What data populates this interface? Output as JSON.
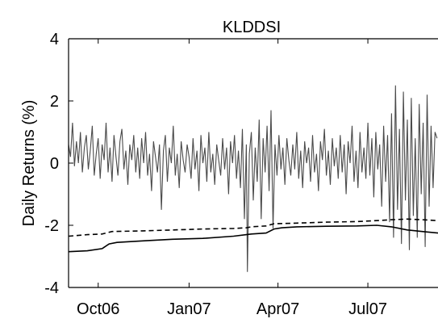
{
  "chart_data": {
    "type": "line",
    "title": "KLDDSI",
    "xlabel": "",
    "ylabel": "Daily Returns (%)",
    "ylim": [
      -4,
      4
    ],
    "yticks": [
      -4,
      -2,
      0,
      2,
      4
    ],
    "xlim": [
      "2006-09-01",
      "2007-09-10"
    ],
    "xticks": [
      {
        "label": "Oct06",
        "date": "2006-10-01"
      },
      {
        "label": "Jan07",
        "date": "2007-01-01"
      },
      {
        "label": "Apr07",
        "date": "2007-04-01"
      },
      {
        "label": "Jul07",
        "date": "2007-07-01"
      }
    ],
    "grid": false,
    "legend": "none",
    "series": [
      {
        "style": "solid",
        "color": "#4a4a4a",
        "points": [
          [
            "2006-09-01",
            0.6
          ],
          [
            "2006-09-03",
            0.2
          ],
          [
            "2006-09-05",
            1.3
          ],
          [
            "2006-09-07",
            -0.1
          ],
          [
            "2006-09-09",
            0.7
          ],
          [
            "2006-09-11",
            0.0
          ],
          [
            "2006-09-13",
            1.0
          ],
          [
            "2006-09-15",
            -0.3
          ],
          [
            "2006-09-17",
            0.5
          ],
          [
            "2006-09-19",
            0.9
          ],
          [
            "2006-09-21",
            -0.2
          ],
          [
            "2006-09-23",
            0.4
          ],
          [
            "2006-09-25",
            1.2
          ],
          [
            "2006-09-27",
            -0.4
          ],
          [
            "2006-09-29",
            0.3
          ],
          [
            "2006-10-01",
            0.8
          ],
          [
            "2006-10-03",
            -0.5
          ],
          [
            "2006-10-05",
            0.6
          ],
          [
            "2006-10-07",
            0.1
          ],
          [
            "2006-10-09",
            1.3
          ],
          [
            "2006-10-11",
            -0.3
          ],
          [
            "2006-10-13",
            0.5
          ],
          [
            "2006-10-15",
            -0.6
          ],
          [
            "2006-10-17",
            0.9
          ],
          [
            "2006-10-19",
            0.2
          ],
          [
            "2006-10-21",
            -0.4
          ],
          [
            "2006-10-23",
            0.7
          ],
          [
            "2006-10-25",
            1.1
          ],
          [
            "2006-10-27",
            -0.2
          ],
          [
            "2006-10-29",
            0.4
          ],
          [
            "2006-10-31",
            -0.7
          ],
          [
            "2006-11-02",
            0.6
          ],
          [
            "2006-11-04",
            0.1
          ],
          [
            "2006-11-06",
            0.9
          ],
          [
            "2006-11-08",
            -0.3
          ],
          [
            "2006-11-10",
            0.5
          ],
          [
            "2006-11-12",
            -0.5
          ],
          [
            "2006-11-14",
            0.8
          ],
          [
            "2006-11-16",
            0.0
          ],
          [
            "2006-11-18",
            1.0
          ],
          [
            "2006-11-20",
            -0.4
          ],
          [
            "2006-11-22",
            0.3
          ],
          [
            "2006-11-24",
            -0.9
          ],
          [
            "2006-11-26",
            0.7
          ],
          [
            "2006-11-28",
            0.2
          ],
          [
            "2006-11-30",
            -0.3
          ],
          [
            "2006-12-02",
            0.6
          ],
          [
            "2006-12-04",
            -1.5
          ],
          [
            "2006-12-06",
            0.4
          ],
          [
            "2006-12-08",
            0.9
          ],
          [
            "2006-12-10",
            -0.6
          ],
          [
            "2006-12-12",
            0.5
          ],
          [
            "2006-12-14",
            0.0
          ],
          [
            "2006-12-16",
            1.2
          ],
          [
            "2006-12-18",
            -0.4
          ],
          [
            "2006-12-20",
            0.3
          ],
          [
            "2006-12-22",
            -0.8
          ],
          [
            "2006-12-24",
            0.7
          ],
          [
            "2006-12-26",
            0.1
          ],
          [
            "2006-12-28",
            -0.3
          ],
          [
            "2006-12-30",
            0.6
          ],
          [
            "2007-01-01",
            0.2
          ],
          [
            "2007-01-03",
            -0.5
          ],
          [
            "2007-01-05",
            0.8
          ],
          [
            "2007-01-07",
            -0.2
          ],
          [
            "2007-01-09",
            0.4
          ],
          [
            "2007-01-11",
            -0.9
          ],
          [
            "2007-01-13",
            0.9
          ],
          [
            "2007-01-15",
            0.0
          ],
          [
            "2007-01-17",
            0.5
          ],
          [
            "2007-01-19",
            -0.6
          ],
          [
            "2007-01-21",
            1.0
          ],
          [
            "2007-01-23",
            -0.3
          ],
          [
            "2007-01-25",
            0.3
          ],
          [
            "2007-01-27",
            -0.7
          ],
          [
            "2007-01-29",
            0.6
          ],
          [
            "2007-01-31",
            0.1
          ],
          [
            "2007-02-02",
            -0.4
          ],
          [
            "2007-02-04",
            0.8
          ],
          [
            "2007-02-06",
            -0.2
          ],
          [
            "2007-02-08",
            0.5
          ],
          [
            "2007-02-10",
            -1.0
          ],
          [
            "2007-02-12",
            0.7
          ],
          [
            "2007-02-14",
            0.0
          ],
          [
            "2007-02-16",
            0.9
          ],
          [
            "2007-02-18",
            -0.5
          ],
          [
            "2007-02-20",
            0.4
          ],
          [
            "2007-02-22",
            -0.8
          ],
          [
            "2007-02-24",
            1.1
          ],
          [
            "2007-02-26",
            -1.8
          ],
          [
            "2007-02-28",
            0.6
          ],
          [
            "2007-03-01",
            -3.5
          ],
          [
            "2007-03-03",
            0.3
          ],
          [
            "2007-03-05",
            1.0
          ],
          [
            "2007-03-07",
            -1.2
          ],
          [
            "2007-03-09",
            0.5
          ],
          [
            "2007-03-11",
            -0.6
          ],
          [
            "2007-03-13",
            1.4
          ],
          [
            "2007-03-15",
            -1.8
          ],
          [
            "2007-03-17",
            0.8
          ],
          [
            "2007-03-19",
            -0.3
          ],
          [
            "2007-03-21",
            1.2
          ],
          [
            "2007-03-23",
            -0.9
          ],
          [
            "2007-03-25",
            1.7
          ],
          [
            "2007-03-27",
            -2.1
          ],
          [
            "2007-03-29",
            0.6
          ],
          [
            "2007-03-31",
            -0.4
          ],
          [
            "2007-04-02",
            0.9
          ],
          [
            "2007-04-04",
            -0.2
          ],
          [
            "2007-04-06",
            0.5
          ],
          [
            "2007-04-08",
            -0.7
          ],
          [
            "2007-04-10",
            0.8
          ],
          [
            "2007-04-12",
            0.1
          ],
          [
            "2007-04-14",
            -0.4
          ],
          [
            "2007-04-16",
            0.6
          ],
          [
            "2007-04-18",
            -0.2
          ],
          [
            "2007-04-20",
            1.0
          ],
          [
            "2007-04-22",
            -0.5
          ],
          [
            "2007-04-24",
            0.4
          ],
          [
            "2007-04-26",
            -0.8
          ],
          [
            "2007-04-28",
            0.7
          ],
          [
            "2007-04-30",
            0.0
          ],
          [
            "2007-05-02",
            0.5
          ],
          [
            "2007-05-04",
            -0.6
          ],
          [
            "2007-05-06",
            0.9
          ],
          [
            "2007-05-08",
            -0.3
          ],
          [
            "2007-05-10",
            0.3
          ],
          [
            "2007-05-12",
            -0.9
          ],
          [
            "2007-05-14",
            0.7
          ],
          [
            "2007-05-16",
            0.1
          ],
          [
            "2007-05-18",
            1.1
          ],
          [
            "2007-05-20",
            -0.4
          ],
          [
            "2007-05-22",
            0.4
          ],
          [
            "2007-05-24",
            -0.7
          ],
          [
            "2007-05-26",
            0.8
          ],
          [
            "2007-05-28",
            -0.1
          ],
          [
            "2007-05-30",
            0.5
          ],
          [
            "2007-06-01",
            -0.5
          ],
          [
            "2007-06-03",
            0.9
          ],
          [
            "2007-06-05",
            -0.3
          ],
          [
            "2007-06-07",
            0.6
          ],
          [
            "2007-06-09",
            -1.0
          ],
          [
            "2007-06-11",
            0.7
          ],
          [
            "2007-06-13",
            0.0
          ],
          [
            "2007-06-15",
            1.2
          ],
          [
            "2007-06-17",
            -0.6
          ],
          [
            "2007-06-19",
            0.4
          ],
          [
            "2007-06-21",
            -0.8
          ],
          [
            "2007-06-23",
            1.0
          ],
          [
            "2007-06-25",
            -0.3
          ],
          [
            "2007-06-27",
            0.5
          ],
          [
            "2007-06-29",
            -0.5
          ],
          [
            "2007-07-01",
            1.3
          ],
          [
            "2007-07-03",
            -0.4
          ],
          [
            "2007-07-05",
            0.8
          ],
          [
            "2007-07-07",
            -1.1
          ],
          [
            "2007-07-09",
            1.0
          ],
          [
            "2007-07-11",
            -0.2
          ],
          [
            "2007-07-13",
            0.6
          ],
          [
            "2007-07-15",
            -1.4
          ],
          [
            "2007-07-17",
            1.2
          ],
          [
            "2007-07-19",
            -0.6
          ],
          [
            "2007-07-21",
            0.9
          ],
          [
            "2007-07-23",
            -1.9
          ],
          [
            "2007-07-25",
            1.6
          ],
          [
            "2007-07-27",
            -2.4
          ],
          [
            "2007-07-29",
            2.5
          ],
          [
            "2007-07-31",
            -1.5
          ],
          [
            "2007-08-02",
            1.1
          ],
          [
            "2007-08-04",
            -2.6
          ],
          [
            "2007-08-06",
            2.3
          ],
          [
            "2007-08-08",
            -1.2
          ],
          [
            "2007-08-10",
            1.4
          ],
          [
            "2007-08-12",
            -2.8
          ],
          [
            "2007-08-14",
            2.1
          ],
          [
            "2007-08-16",
            -1.7
          ],
          [
            "2007-08-18",
            0.8
          ],
          [
            "2007-08-20",
            -2.4
          ],
          [
            "2007-08-22",
            1.9
          ],
          [
            "2007-08-24",
            -1.0
          ],
          [
            "2007-08-26",
            1.3
          ],
          [
            "2007-08-28",
            -2.7
          ],
          [
            "2007-08-30",
            2.2
          ],
          [
            "2007-09-01",
            -1.4
          ],
          [
            "2007-09-03",
            1.2
          ],
          [
            "2007-09-05",
            -0.8
          ],
          [
            "2007-09-07",
            1.0
          ],
          [
            "2007-09-09",
            0.8
          ]
        ]
      },
      {
        "style": "dashed",
        "color": "#000000",
        "points": [
          [
            "2006-09-01",
            -2.35
          ],
          [
            "2006-09-20",
            -2.3
          ],
          [
            "2006-10-05",
            -2.28
          ],
          [
            "2006-10-15",
            -2.2
          ],
          [
            "2006-11-15",
            -2.18
          ],
          [
            "2006-12-15",
            -2.15
          ],
          [
            "2007-01-15",
            -2.12
          ],
          [
            "2007-02-15",
            -2.1
          ],
          [
            "2007-02-28",
            -2.08
          ],
          [
            "2007-03-05",
            -2.05
          ],
          [
            "2007-03-20",
            -2.02
          ],
          [
            "2007-03-28",
            -1.95
          ],
          [
            "2007-04-20",
            -1.93
          ],
          [
            "2007-05-20",
            -1.9
          ],
          [
            "2007-06-20",
            -1.88
          ],
          [
            "2007-07-10",
            -1.85
          ],
          [
            "2007-07-25",
            -1.82
          ],
          [
            "2007-08-10",
            -1.8
          ],
          [
            "2007-08-25",
            -1.82
          ],
          [
            "2007-09-10",
            -1.85
          ]
        ]
      },
      {
        "style": "solid",
        "color": "#000000",
        "points": [
          [
            "2006-09-01",
            -2.85
          ],
          [
            "2006-09-20",
            -2.82
          ],
          [
            "2006-10-05",
            -2.75
          ],
          [
            "2006-10-12",
            -2.6
          ],
          [
            "2006-10-20",
            -2.55
          ],
          [
            "2006-11-15",
            -2.5
          ],
          [
            "2006-12-15",
            -2.45
          ],
          [
            "2007-01-15",
            -2.42
          ],
          [
            "2007-02-15",
            -2.35
          ],
          [
            "2007-02-28",
            -2.3
          ],
          [
            "2007-03-05",
            -2.28
          ],
          [
            "2007-03-20",
            -2.25
          ],
          [
            "2007-03-28",
            -2.12
          ],
          [
            "2007-04-05",
            -2.08
          ],
          [
            "2007-04-20",
            -2.05
          ],
          [
            "2007-05-20",
            -2.03
          ],
          [
            "2007-06-20",
            -2.02
          ],
          [
            "2007-07-10",
            -2.0
          ],
          [
            "2007-07-25",
            -2.05
          ],
          [
            "2007-08-10",
            -2.15
          ],
          [
            "2007-08-25",
            -2.2
          ],
          [
            "2007-09-10",
            -2.25
          ]
        ]
      }
    ]
  }
}
